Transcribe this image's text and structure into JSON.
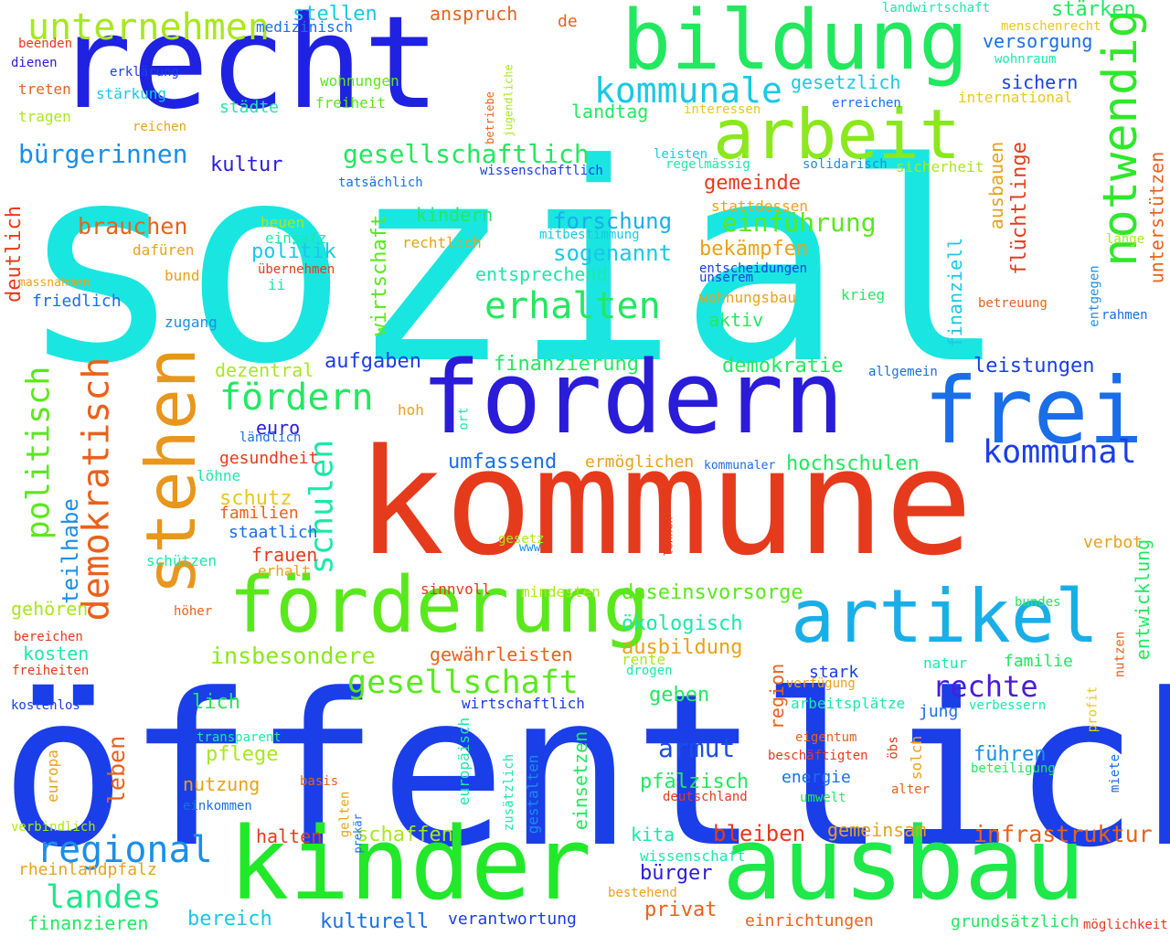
{
  "colors": {
    "cyan": "#19e6e0",
    "blue": "#1a3ee8",
    "darkblue": "#2a1cd8",
    "red": "#e63a1c",
    "orange": "#e8a21c",
    "green": "#2ee82a",
    "lime": "#8ae81c",
    "teal": "#1ce8a8",
    "skyblue": "#1aa8e8",
    "lightgreen": "#1ce860"
  },
  "words": [
    {
      "text": "sozial",
      "color": "#19e6e0"
    },
    {
      "text": "öffentlich",
      "color": "#1a3ee8"
    },
    {
      "text": "kommune",
      "color": "#e63a1c"
    },
    {
      "text": "recht",
      "color": "#1f22e0"
    },
    {
      "text": "kinder",
      "color": "#22e82a"
    },
    {
      "text": "ausbau",
      "color": "#1ee84a"
    },
    {
      "text": "fordern",
      "color": "#2a1cd8"
    },
    {
      "text": "bildung",
      "color": "#22e860"
    },
    {
      "text": "arbeit",
      "color": "#8ae81c"
    },
    {
      "text": "stehen",
      "color": "#e8961c"
    },
    {
      "text": "frei",
      "color": "#1a6ee8"
    },
    {
      "text": "förderung",
      "color": "#5ae81c"
    },
    {
      "text": "artikel",
      "color": "#1aaee8"
    },
    {
      "text": "demokratisch",
      "color": "#e8621c"
    },
    {
      "text": "notwendig",
      "color": "#2ee82a"
    },
    {
      "text": "unternehmen",
      "color": "#a8e81c"
    },
    {
      "text": "kommunale",
      "color": "#19c8e6"
    },
    {
      "text": "erhalten",
      "color": "#22e860"
    },
    {
      "text": "fördern",
      "color": "#22e860"
    },
    {
      "text": "regional",
      "color": "#1a8ee8"
    },
    {
      "text": "landes",
      "color": "#1ce88a"
    },
    {
      "text": "gesellschaft",
      "color": "#5ae81c"
    },
    {
      "text": "kommunal",
      "color": "#1a3ee8"
    },
    {
      "text": "politisch",
      "color": "#5ae81c"
    },
    {
      "text": "schulen",
      "color": "#1ce8a8"
    },
    {
      "text": "rechte",
      "color": "#4a1cd8"
    },
    {
      "text": "bürgerinnen",
      "color": "#1a8ee8"
    },
    {
      "text": "gesellschaftlich",
      "color": "#22e860"
    },
    {
      "text": "einführung",
      "color": "#5ae81c"
    },
    {
      "text": "insbesondere",
      "color": "#8ae81c"
    },
    {
      "text": "armut",
      "color": "#1a4ee8"
    },
    {
      "text": "infrastruktur",
      "color": "#e8621c"
    },
    {
      "text": "brauchen",
      "color": "#e8621c"
    },
    {
      "text": "forschung",
      "color": "#1aaee8"
    },
    {
      "text": "sogenannt",
      "color": "#19c8e6"
    },
    {
      "text": "leistungen",
      "color": "#1a3ee8"
    },
    {
      "text": "stellen",
      "color": "#19c8e6"
    },
    {
      "text": "anspruch",
      "color": "#e8621c"
    },
    {
      "text": "stärken",
      "color": "#22e860"
    },
    {
      "text": "versorgung",
      "color": "#1a6ee8"
    },
    {
      "text": "sichern",
      "color": "#1a3ee8"
    },
    {
      "text": "gesetzlich",
      "color": "#19c8e6"
    },
    {
      "text": "landtag",
      "color": "#22e860"
    },
    {
      "text": "kultur",
      "color": "#2a1cd8"
    },
    {
      "text": "gemeinde",
      "color": "#e63a1c"
    },
    {
      "text": "kindern",
      "color": "#22e860"
    },
    {
      "text": "politik",
      "color": "#19c8e6"
    },
    {
      "text": "bekämpfen",
      "color": "#e8a21c"
    },
    {
      "text": "entsprechend",
      "color": "#1ce8a8"
    },
    {
      "text": "ausbauen",
      "color": "#e8a21c"
    },
    {
      "text": "flüchtlinge",
      "color": "#e63a1c"
    },
    {
      "text": "finanziell",
      "color": "#19c8e6"
    },
    {
      "text": "unterstützen",
      "color": "#e8621c"
    },
    {
      "text": "wirtschaft",
      "color": "#5ae81c"
    },
    {
      "text": "aufgaben",
      "color": "#1a3ee8"
    },
    {
      "text": "finanzierung",
      "color": "#22e860"
    },
    {
      "text": "demokratie",
      "color": "#22e860"
    },
    {
      "text": "aktiv",
      "color": "#22e860"
    },
    {
      "text": "dezentral",
      "color": "#a8e81c"
    },
    {
      "text": "euro",
      "color": "#2a1cd8"
    },
    {
      "text": "umfassend",
      "color": "#1a6ee8"
    },
    {
      "text": "hochschulen",
      "color": "#22e860"
    },
    {
      "text": "ermöglichen",
      "color": "#e8a21c"
    },
    {
      "text": "daseinsvorsorge",
      "color": "#5ae81c"
    },
    {
      "text": "ökologisch",
      "color": "#1ce8a8"
    },
    {
      "text": "ausbildung",
      "color": "#e8a21c"
    },
    {
      "text": "gewährleisten",
      "color": "#e8621c"
    },
    {
      "text": "geben",
      "color": "#22e860"
    },
    {
      "text": "führen",
      "color": "#1a8ee8"
    },
    {
      "text": "pfälzisch",
      "color": "#22e860"
    },
    {
      "text": "energie",
      "color": "#1a6ee8"
    },
    {
      "text": "bleiben",
      "color": "#e63a1c"
    },
    {
      "text": "kita",
      "color": "#1ce8a8"
    },
    {
      "text": "bürger",
      "color": "#2a1cd8"
    },
    {
      "text": "privat",
      "color": "#e8621c"
    },
    {
      "text": "schaffen",
      "color": "#a8e81c"
    },
    {
      "text": "gemeinsam",
      "color": "#e8a21c"
    },
    {
      "text": "bereich",
      "color": "#19c8e6"
    },
    {
      "text": "kulturell",
      "color": "#1a6ee8"
    },
    {
      "text": "finanzieren",
      "color": "#22e860"
    },
    {
      "text": "verantwortung",
      "color": "#1a3ee8"
    },
    {
      "text": "einrichtungen",
      "color": "#e8621c"
    },
    {
      "text": "grundsätzlich",
      "color": "#22e860"
    },
    {
      "text": "möglichkeit",
      "color": "#e63a1c"
    },
    {
      "text": "halten",
      "color": "#e63a1c"
    },
    {
      "text": "rheinlandpfalz",
      "color": "#e8a21c"
    },
    {
      "text": "nutzung",
      "color": "#e8a21c"
    },
    {
      "text": "pflege",
      "color": "#a8e81c"
    },
    {
      "text": "leben",
      "color": "#e8621c"
    },
    {
      "text": "lich",
      "color": "#22e860"
    },
    {
      "text": "kosten",
      "color": "#1ce8a8"
    },
    {
      "text": "gehören",
      "color": "#a8e81c"
    },
    {
      "text": "teilhabe",
      "color": "#1a8ee8"
    },
    {
      "text": "frauen",
      "color": "#e63a1c"
    },
    {
      "text": "staatlich",
      "color": "#1a6ee8"
    },
    {
      "text": "familien",
      "color": "#e8621c"
    },
    {
      "text": "schutz",
      "color": "#e8c81c"
    },
    {
      "text": "gesundheit",
      "color": "#e63a1c"
    },
    {
      "text": "löhne",
      "color": "#1ce8a8"
    },
    {
      "text": "ländlich",
      "color": "#1a6ee8"
    },
    {
      "text": "friedlich",
      "color": "#1a6ee8"
    },
    {
      "text": "deutlich",
      "color": "#e63a1c"
    },
    {
      "text": "zugang",
      "color": "#1a8ee8"
    },
    {
      "text": "dafüren",
      "color": "#e8a21c"
    },
    {
      "text": "bund",
      "color": "#e8a21c"
    },
    {
      "text": "heuen",
      "color": "#a8e81c"
    },
    {
      "text": "einsatz",
      "color": "#1ce8a8"
    },
    {
      "text": "übernehmen",
      "color": "#e63a1c"
    },
    {
      "text": "ii",
      "color": "#1ce8a8"
    },
    {
      "text": "rechtlich",
      "color": "#e8a21c"
    },
    {
      "text": "mitbestimmung",
      "color": "#19c8e6"
    },
    {
      "text": "entscheidungen",
      "color": "#1a3ee8"
    },
    {
      "text": "unserem",
      "color": "#1a3ee8"
    },
    {
      "text": "wohnungsbau",
      "color": "#e8a21c"
    },
    {
      "text": "krieg",
      "color": "#22e860"
    },
    {
      "text": "stattdessen",
      "color": "#e8a21c"
    },
    {
      "text": "regelmässig",
      "color": "#1ce8a8"
    },
    {
      "text": "solidarisch",
      "color": "#1a8ee8"
    },
    {
      "text": "sicherheit",
      "color": "#a8e81c"
    },
    {
      "text": "leisten",
      "color": "#19c8e6"
    },
    {
      "text": "wissenschaftlich",
      "color": "#1a3ee8"
    },
    {
      "text": "tatsächlich",
      "color": "#1a6ee8"
    },
    {
      "text": "massnahmen",
      "color": "#e8a21c"
    },
    {
      "text": "beenden",
      "color": "#e63a1c"
    },
    {
      "text": "dienen",
      "color": "#2a1cd8"
    },
    {
      "text": "treten",
      "color": "#e8621c"
    },
    {
      "text": "tragen",
      "color": "#a8e81c"
    },
    {
      "text": "erklärung",
      "color": "#1a3ee8"
    },
    {
      "text": "stärkung",
      "color": "#19c8e6"
    },
    {
      "text": "reichen",
      "color": "#e8a21c"
    },
    {
      "text": "medizinisch",
      "color": "#1a6ee8"
    },
    {
      "text": "wohnungen",
      "color": "#5ae81c"
    },
    {
      "text": "städte",
      "color": "#1ce8a8"
    },
    {
      "text": "freiheit",
      "color": "#5ae81c"
    },
    {
      "text": "de",
      "color": "#e8621c"
    },
    {
      "text": "betriebe",
      "color": "#e8621c"
    },
    {
      "text": "jugendliche",
      "color": "#a8e81c"
    },
    {
      "text": "interessen",
      "color": "#e8c81c"
    },
    {
      "text": "erreichen",
      "color": "#1a6ee8"
    },
    {
      "text": "landwirtschaft",
      "color": "#1ce8a8"
    },
    {
      "text": "menschenrecht",
      "color": "#e8c81c"
    },
    {
      "text": "wohnraum",
      "color": "#1ce8a8"
    },
    {
      "text": "international",
      "color": "#e8c81c"
    },
    {
      "text": "länge",
      "color": "#a8e81c"
    },
    {
      "text": "entgegen",
      "color": "#1a8ee8"
    },
    {
      "text": "rahmen",
      "color": "#1a6ee8"
    },
    {
      "text": "betreuung",
      "color": "#e8621c"
    },
    {
      "text": "allgemein",
      "color": "#1a6ee8"
    },
    {
      "text": "hoh",
      "color": "#e8a21c"
    },
    {
      "text": "ort",
      "color": "#1ce8a8"
    },
    {
      "text": "kommunaler",
      "color": "#1a6ee8"
    },
    {
      "text": "lehnen",
      "color": "#e63a1c"
    },
    {
      "text": "gesetz",
      "color": "#a8e81c"
    },
    {
      "text": "www",
      "color": "#1a8ee8"
    },
    {
      "text": "verbot",
      "color": "#e8a21c"
    },
    {
      "text": "schützen",
      "color": "#1ce8a8"
    },
    {
      "text": "erhalt",
      "color": "#e8a21c"
    },
    {
      "text": "sinnvoll",
      "color": "#e63a1c"
    },
    {
      "text": "mindesten",
      "color": "#a8e81c"
    },
    {
      "text": "bundes",
      "color": "#22e860"
    },
    {
      "text": "entwicklung",
      "color": "#22e860"
    },
    {
      "text": "nutzen",
      "color": "#e8621c"
    },
    {
      "text": "profit",
      "color": "#e8c81c"
    },
    {
      "text": "miete",
      "color": "#1a6ee8"
    },
    {
      "text": "beteiligung",
      "color": "#22e860"
    },
    {
      "text": "alter",
      "color": "#e8621c"
    },
    {
      "text": "solch",
      "color": "#e8a21c"
    },
    {
      "text": "öbs",
      "color": "#e63a1c"
    },
    {
      "text": "umwelt",
      "color": "#22e860"
    },
    {
      "text": "deutschland",
      "color": "#e63a1c"
    },
    {
      "text": "eigentum",
      "color": "#e8621c"
    },
    {
      "text": "beschäftigten",
      "color": "#e63a1c"
    },
    {
      "text": "verbessern",
      "color": "#1ce8a8"
    },
    {
      "text": "jung",
      "color": "#1a6ee8"
    },
    {
      "text": "arbeitsplätze",
      "color": "#1ce8a8"
    },
    {
      "text": "verfügung",
      "color": "#e8a21c"
    },
    {
      "text": "natur",
      "color": "#1ce8a8"
    },
    {
      "text": "familie",
      "color": "#22e860"
    },
    {
      "text": "stark",
      "color": "#1a3ee8"
    },
    {
      "text": "region",
      "color": "#e8621c"
    },
    {
      "text": "rente",
      "color": "#a8e81c"
    },
    {
      "text": "drogen",
      "color": "#1ce8a8"
    },
    {
      "text": "wirtschaftlich",
      "color": "#1a3ee8"
    },
    {
      "text": "europäisch",
      "color": "#1ce8a8"
    },
    {
      "text": "zusätzlich",
      "color": "#1ce8a8"
    },
    {
      "text": "gestalten",
      "color": "#1a8ee8"
    },
    {
      "text": "einsetzen",
      "color": "#22e860"
    },
    {
      "text": "wissenschaft",
      "color": "#1ce8a8"
    },
    {
      "text": "bestehend",
      "color": "#e8a21c"
    },
    {
      "text": "gelten",
      "color": "#e8a21c"
    },
    {
      "text": "prekär",
      "color": "#1a6ee8"
    },
    {
      "text": "basis",
      "color": "#e8621c"
    },
    {
      "text": "einkommen",
      "color": "#1a6ee8"
    },
    {
      "text": "transparent",
      "color": "#1ce8a8"
    },
    {
      "text": "europa",
      "color": "#e8a21c"
    },
    {
      "text": "höher",
      "color": "#e8621c"
    },
    {
      "text": "bereichen",
      "color": "#e63a1c"
    },
    {
      "text": "freiheiten",
      "color": "#e63a1c"
    },
    {
      "text": "kostenlos",
      "color": "#1a3ee8"
    },
    {
      "text": "verbindlich",
      "color": "#a8e81c"
    }
  ]
}
